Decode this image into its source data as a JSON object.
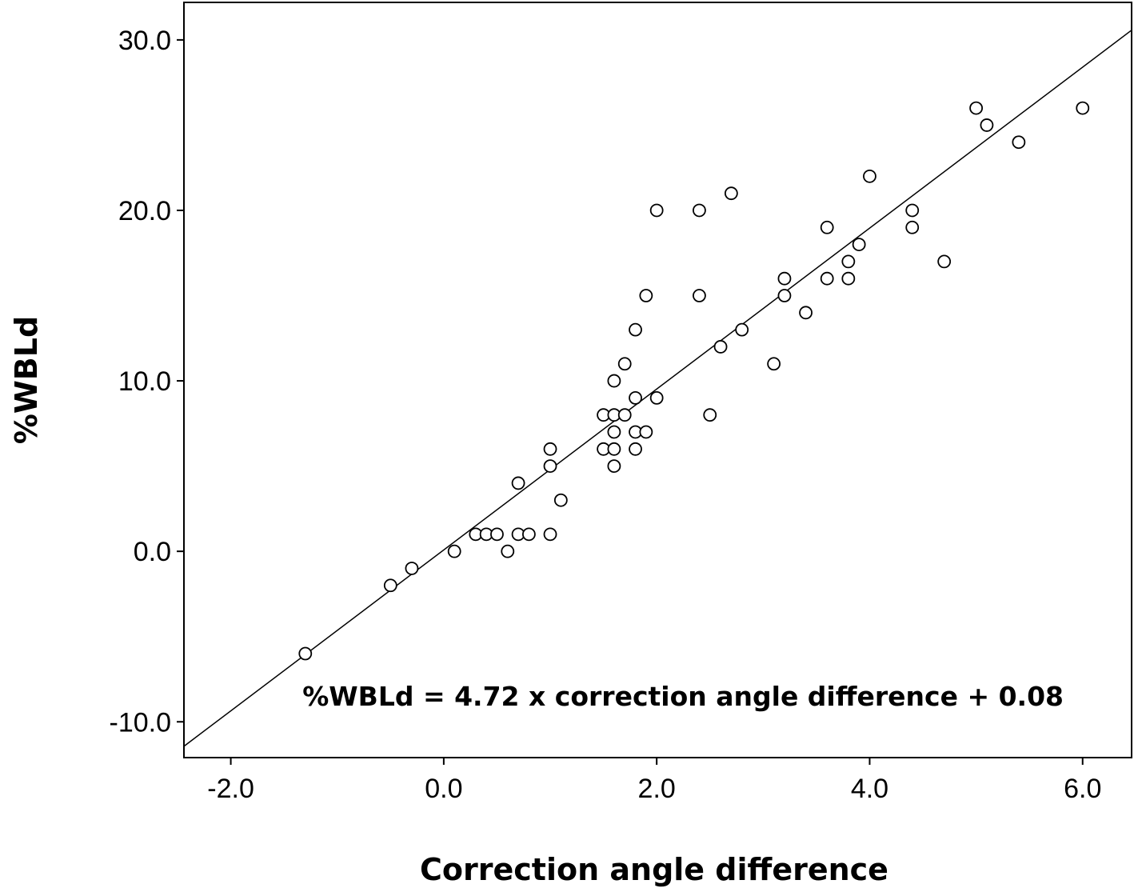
{
  "chart_data": {
    "type": "scatter",
    "x_label": "Correction angle difference",
    "y_label": "%WBLd",
    "annotation": "%WBLd = 4.72 x correction angle difference + 0.08",
    "regression": {
      "slope": 4.72,
      "intercept": 0.08
    },
    "xlim": [
      -2.44,
      6.46
    ],
    "ylim": [
      -12.1,
      32.2
    ],
    "xticks": [
      {
        "value": -2,
        "label": "-2.0"
      },
      {
        "value": 0,
        "label": "0.0"
      },
      {
        "value": 2,
        "label": "2.0"
      },
      {
        "value": 4,
        "label": "4.0"
      },
      {
        "value": 6,
        "label": "6.0"
      }
    ],
    "yticks": [
      {
        "value": -10,
        "label": "-10.0"
      },
      {
        "value": 0,
        "label": "0.0"
      },
      {
        "value": 10,
        "label": "10.0"
      },
      {
        "value": 20,
        "label": "20.0"
      },
      {
        "value": 30,
        "label": "30.0"
      }
    ],
    "grid": false,
    "color": "#000000",
    "x": [
      -1.3,
      -0.5,
      -0.3,
      0.1,
      0.3,
      0.4,
      0.5,
      0.6,
      0.7,
      0.8,
      1.0,
      0.7,
      1.0,
      1.0,
      1.1,
      1.5,
      1.5,
      1.6,
      1.6,
      1.6,
      1.6,
      1.6,
      1.7,
      1.7,
      1.8,
      1.8,
      1.8,
      1.8,
      1.9,
      1.9,
      2.0,
      2.0,
      2.4,
      2.4,
      2.5,
      2.6,
      2.7,
      2.8,
      3.1,
      3.2,
      3.2,
      3.4,
      3.6,
      3.6,
      3.8,
      3.8,
      3.9,
      4.0,
      4.4,
      4.4,
      4.7,
      5.0,
      5.1,
      5.4,
      6.0
    ],
    "values": [
      -6,
      -2,
      -1,
      0,
      1,
      1,
      1,
      0,
      1,
      1,
      1,
      4,
      5,
      6,
      3,
      8,
      6,
      8,
      7,
      6,
      5,
      10,
      8,
      11,
      9,
      7,
      6,
      13,
      7,
      15,
      9,
      20,
      20,
      15,
      8,
      12,
      21,
      13,
      11,
      16,
      15,
      14,
      19,
      16,
      17,
      16,
      18,
      22,
      20,
      19,
      17,
      26,
      25,
      24,
      26
    ]
  }
}
